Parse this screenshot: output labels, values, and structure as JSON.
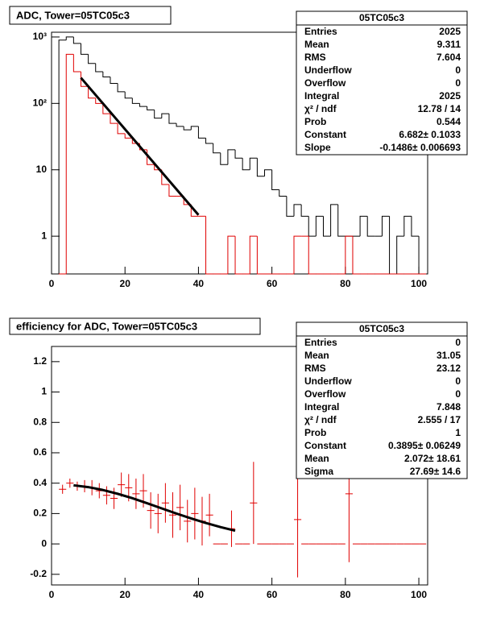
{
  "chart_data": [
    {
      "type": "histogram",
      "title": "ADC, Tower=05TC05c3",
      "log_y": true,
      "bins": [
        2,
        4,
        6,
        8,
        10,
        12,
        14,
        16,
        18,
        20,
        22,
        24,
        26,
        28,
        30,
        32,
        34,
        36,
        38,
        40,
        42,
        44,
        46,
        48,
        50,
        52,
        54,
        56,
        58,
        60,
        62,
        64,
        66,
        68,
        70,
        72,
        74,
        76,
        78,
        80,
        82,
        84,
        86,
        88,
        90,
        92,
        94,
        96,
        98,
        100,
        102
      ],
      "series": [
        {
          "color": "#000000",
          "values": [
            900,
            1000,
            800,
            550,
            400,
            300,
            250,
            200,
            150,
            120,
            100,
            90,
            80,
            60,
            70,
            50,
            45,
            40,
            45,
            30,
            25,
            18,
            12,
            20,
            15,
            10,
            15,
            8,
            10,
            5,
            4,
            2,
            3,
            2,
            1,
            2,
            1,
            3,
            1,
            1,
            1,
            2,
            1,
            1,
            2,
            0,
            1,
            2,
            1,
            0
          ]
        },
        {
          "color": "#e00000",
          "values": [
            0,
            550,
            300,
            180,
            120,
            100,
            70,
            50,
            35,
            30,
            25,
            20,
            12,
            10,
            6,
            4,
            4,
            3,
            2,
            2,
            0,
            0,
            0,
            1,
            0,
            0,
            1,
            0,
            0,
            0,
            0,
            0,
            1,
            1,
            0,
            0,
            0,
            0,
            0,
            1,
            0,
            0,
            0,
            0,
            0,
            0,
            0,
            0,
            0,
            0
          ]
        }
      ],
      "fit": {
        "color": "#000000",
        "x": [
          8,
          40
        ],
        "values": [
          243,
          2.09
        ]
      },
      "xlim": [
        0,
        102.4
      ],
      "xticks": [
        0,
        20,
        40,
        60,
        80,
        100
      ],
      "ylim": [
        0.27,
        1180
      ],
      "yticks": [
        1,
        10,
        {
          "value": 100,
          "label": "10²"
        },
        {
          "value": 1000,
          "label": "10³"
        }
      ],
      "stats": {
        "title": "05TC05c3",
        "rows": [
          [
            "Entries",
            "2025"
          ],
          [
            "Mean",
            "9.311"
          ],
          [
            "RMS",
            "7.604"
          ],
          [
            "Underflow",
            "0"
          ],
          [
            "Overflow",
            "0"
          ],
          [
            "Integral",
            "2025"
          ],
          [
            "χ² / ndf",
            "12.78 / 14"
          ],
          [
            "Prob",
            "0.544"
          ],
          [
            "Constant",
            "6.682± 0.1033"
          ],
          [
            "Slope",
            "-0.1486± 0.006693"
          ]
        ]
      }
    },
    {
      "type": "errorbar",
      "title": "efficiency for ADC, Tower=05TC05c3",
      "color": "#e00000",
      "xerr": 1,
      "x": [
        3,
        5,
        7,
        9,
        11,
        13,
        15,
        17,
        19,
        21,
        23,
        25,
        27,
        29,
        31,
        33,
        35,
        37,
        39,
        41,
        43,
        45,
        47,
        49,
        51,
        53,
        55,
        57,
        59,
        61,
        63,
        65,
        67,
        69,
        71,
        73,
        75,
        77,
        79,
        81,
        83,
        85,
        87,
        89,
        91,
        93,
        95,
        97,
        99,
        101
      ],
      "values": [
        0.36,
        0.4,
        0.38,
        0.38,
        0.37,
        0.35,
        0.32,
        0.3,
        0.39,
        0.37,
        0.33,
        0.35,
        0.22,
        0.2,
        0.27,
        0.19,
        0.24,
        0.15,
        0.2,
        0.15,
        0.19,
        0,
        0,
        0.1,
        0,
        0,
        0.27,
        0,
        0,
        0,
        0,
        0,
        0.16,
        0,
        0,
        0,
        0,
        0,
        0,
        0.33,
        0,
        0,
        0,
        0,
        0,
        0,
        0,
        0,
        0,
        0
      ],
      "errors": [
        0.03,
        0.03,
        0.03,
        0.04,
        0.05,
        0.05,
        0.06,
        0.07,
        0.08,
        0.09,
        0.1,
        0.11,
        0.12,
        0.13,
        0.13,
        0.15,
        0.15,
        0.14,
        0.17,
        0.16,
        0.14,
        0,
        0,
        0.12,
        0,
        0,
        0.27,
        0,
        0,
        0,
        0,
        0,
        0.38,
        0,
        0,
        0,
        0,
        0,
        0,
        0.45,
        0,
        0,
        0,
        0,
        0,
        0,
        0,
        0,
        0,
        0
      ],
      "fit": {
        "color": "#000000",
        "x": [
          6,
          10,
          14,
          18,
          22,
          26,
          30,
          34,
          38,
          42,
          46,
          50
        ],
        "values": [
          0.386,
          0.374,
          0.355,
          0.33,
          0.301,
          0.268,
          0.234,
          0.2,
          0.168,
          0.138,
          0.111,
          0.087
        ]
      },
      "xlim": [
        0,
        102.4
      ],
      "xticks": [
        0,
        20,
        40,
        60,
        80,
        100
      ],
      "ylim": [
        -0.27,
        1.3
      ],
      "yticks": [
        -0.2,
        0,
        0.2,
        0.4,
        0.6,
        0.8,
        1,
        1.2
      ],
      "stats": {
        "title": "05TC05c3",
        "rows": [
          [
            "Entries",
            "0"
          ],
          [
            "Mean",
            "31.05"
          ],
          [
            "RMS",
            "23.12"
          ],
          [
            "Underflow",
            "0"
          ],
          [
            "Overflow",
            "0"
          ],
          [
            "Integral",
            "7.848"
          ],
          [
            "χ² / ndf",
            "2.555 / 17"
          ],
          [
            "Prob",
            "1"
          ],
          [
            "Constant",
            "0.3895± 0.06249"
          ],
          [
            "Mean",
            "2.072± 18.61"
          ],
          [
            "Sigma",
            "27.69± 14.6"
          ]
        ]
      }
    }
  ]
}
